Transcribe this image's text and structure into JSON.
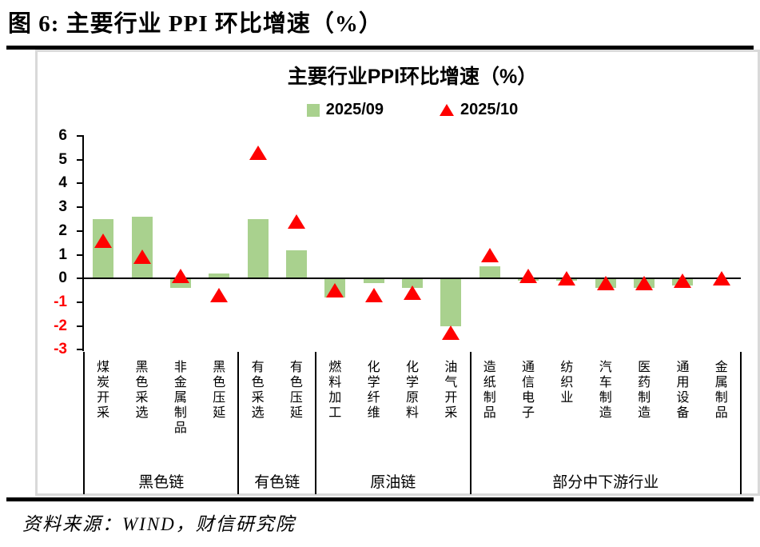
{
  "figure": {
    "title": "图 6:  主要行业 PPI 环比增速（%）",
    "source": "资料来源：WIND，财信研究院"
  },
  "chart": {
    "title": "主要行业PPI环比增速（%）",
    "legend_09": "2025/09",
    "legend_10": "2025/10"
  },
  "colors": {
    "bar_fill": "#A9D18E",
    "marker_fill": "#FF0000",
    "tick_positive": "#000000",
    "tick_negative": "#FF0000",
    "frame_border": "#D9D9D9",
    "rule": "#000000"
  },
  "chart_data": {
    "type": "bar",
    "title": "主要行业PPI环比增速（%）",
    "xlabel": "",
    "ylabel": "",
    "ylim": [
      -3,
      6
    ],
    "yticks": [
      6,
      5,
      4,
      3,
      2,
      1,
      0,
      -1,
      -2,
      -3
    ],
    "grid": false,
    "legend_position": "top",
    "categories": [
      "煤炭开采",
      "黑色采选",
      "非金属制品",
      "黑色压延",
      "有色采选",
      "有色压延",
      "燃料加工",
      "化学纤维",
      "化学原料",
      "油气开采",
      "造纸制品",
      "通信电子",
      "纺织业",
      "汽车制造",
      "医药制造",
      "通用设备",
      "金属制品"
    ],
    "series": [
      {
        "name": "2025/09",
        "style": "bar",
        "color": "#A9D18E",
        "values": [
          2.5,
          2.6,
          -0.4,
          0.2,
          2.5,
          1.2,
          -0.8,
          -0.2,
          -0.4,
          -2.0,
          0.5,
          -0.1,
          -0.1,
          -0.4,
          -0.4,
          -0.3,
          0.0
        ]
      },
      {
        "name": "2025/10",
        "style": "triangle-marker",
        "color": "#FF0000",
        "values": [
          1.6,
          0.9,
          0.1,
          -0.7,
          5.3,
          2.4,
          -0.5,
          -0.7,
          -0.6,
          -2.3,
          1.0,
          0.1,
          0.0,
          -0.2,
          -0.2,
          -0.1,
          0.0
        ]
      }
    ],
    "groups": [
      {
        "label": "黑色链",
        "start": 0,
        "end": 3
      },
      {
        "label": "有色链",
        "start": 4,
        "end": 5
      },
      {
        "label": "原油链",
        "start": 6,
        "end": 9
      },
      {
        "label": "部分中下游行业",
        "start": 10,
        "end": 16
      }
    ]
  }
}
